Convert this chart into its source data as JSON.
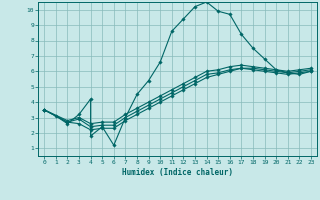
{
  "title": "",
  "xlabel": "Humidex (Indice chaleur)",
  "bg_color": "#c8e8e8",
  "grid_color": "#88bbbb",
  "line_color": "#006666",
  "xlim": [
    -0.5,
    23.5
  ],
  "ylim": [
    0.5,
    10.5
  ],
  "xticks": [
    0,
    1,
    2,
    3,
    4,
    5,
    6,
    7,
    8,
    9,
    10,
    11,
    12,
    13,
    14,
    15,
    16,
    17,
    18,
    19,
    20,
    21,
    22,
    23
  ],
  "yticks": [
    1,
    2,
    3,
    4,
    5,
    6,
    7,
    8,
    9,
    10
  ],
  "series": [
    {
      "x": [
        0,
        1,
        2,
        3,
        4,
        4,
        5,
        6,
        7,
        8,
        9,
        10,
        11,
        12,
        13,
        14,
        15,
        16,
        17,
        18,
        19,
        20,
        21,
        22,
        23
      ],
      "y": [
        3.5,
        3.1,
        2.6,
        3.2,
        4.2,
        1.8,
        2.4,
        1.2,
        3.0,
        4.5,
        5.4,
        6.6,
        8.6,
        9.4,
        10.2,
        10.5,
        9.9,
        9.7,
        8.4,
        7.5,
        6.8,
        6.1,
        5.9,
        5.8,
        6.0
      ]
    },
    {
      "x": [
        0,
        2,
        3,
        4,
        5,
        6,
        7,
        8,
        9,
        10,
        11,
        12,
        13,
        14,
        15,
        16,
        17,
        18,
        19,
        20,
        21,
        22,
        23
      ],
      "y": [
        3.5,
        2.7,
        2.6,
        2.2,
        2.3,
        2.3,
        2.8,
        3.2,
        3.6,
        4.0,
        4.4,
        4.8,
        5.2,
        5.6,
        5.8,
        6.0,
        6.2,
        6.1,
        6.0,
        5.9,
        5.8,
        5.9,
        6.0
      ]
    },
    {
      "x": [
        0,
        2,
        3,
        4,
        5,
        6,
        7,
        8,
        9,
        10,
        11,
        12,
        13,
        14,
        15,
        16,
        17,
        18,
        19,
        20,
        21,
        22,
        23
      ],
      "y": [
        3.5,
        2.7,
        2.9,
        2.4,
        2.5,
        2.5,
        3.0,
        3.4,
        3.8,
        4.2,
        4.6,
        5.0,
        5.4,
        5.8,
        5.9,
        6.1,
        6.2,
        6.2,
        6.1,
        6.0,
        5.9,
        6.0,
        6.1
      ]
    },
    {
      "x": [
        0,
        2,
        3,
        4,
        5,
        6,
        7,
        8,
        9,
        10,
        11,
        12,
        13,
        14,
        15,
        16,
        17,
        18,
        19,
        20,
        21,
        22,
        23
      ],
      "y": [
        3.5,
        2.8,
        3.0,
        2.6,
        2.7,
        2.7,
        3.2,
        3.6,
        4.0,
        4.4,
        4.8,
        5.2,
        5.6,
        6.0,
        6.1,
        6.3,
        6.4,
        6.3,
        6.2,
        6.1,
        6.0,
        6.1,
        6.2
      ]
    }
  ]
}
